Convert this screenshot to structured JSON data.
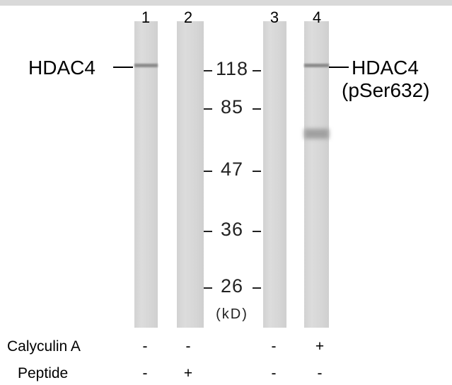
{
  "lanes": [
    "1",
    "2",
    "3",
    "4"
  ],
  "markers": [
    "118",
    "85",
    "47",
    "36",
    "26"
  ],
  "unit": "(kD)",
  "left_label": "HDAC4",
  "right_label": [
    "HDAC4",
    "(pSer632)"
  ],
  "treatments": [
    {
      "name": "Calyculin A",
      "signs": [
        "-",
        "-",
        "-",
        "+"
      ]
    },
    {
      "name": "Peptide",
      "signs": [
        "-",
        "+",
        "-",
        "-"
      ]
    }
  ]
}
